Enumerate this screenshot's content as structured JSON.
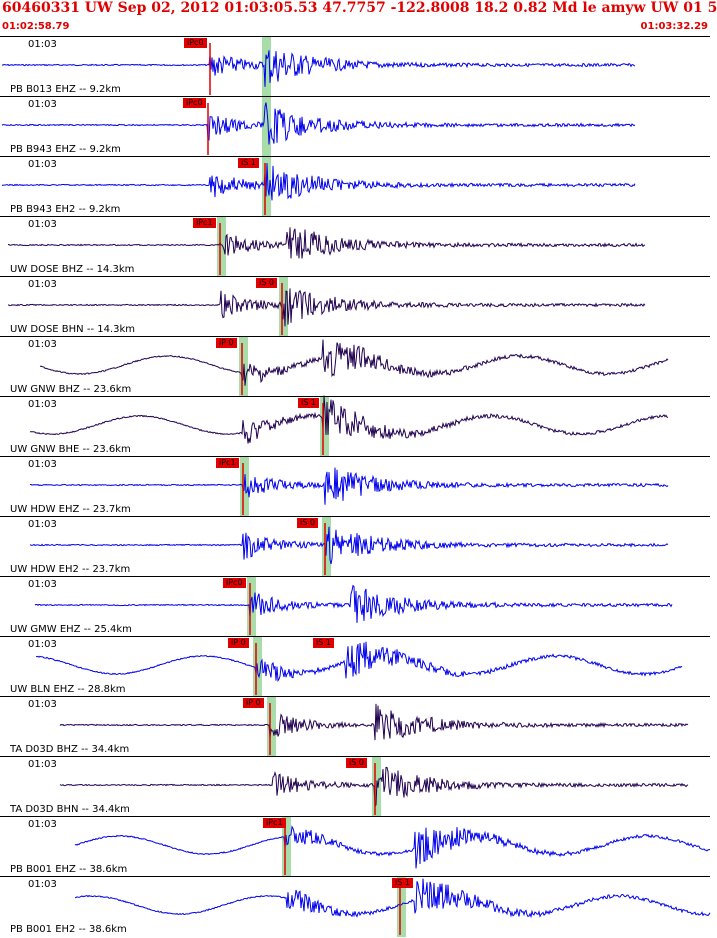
{
  "header": {
    "title": "60460331 UW Sep 02, 2012 01:03:05.53   47.7757 -122.8008 18.2 0.82 Md le amyw UW 01   5",
    "time_start": "01:02:58.79",
    "time_end": "01:03:32.29"
  },
  "colors": {
    "header_text": "#e00000",
    "trace_blue": "#0000ee",
    "trace_dark": "#200050",
    "pick_red": "#e00000",
    "window_green": "#a8dca8"
  },
  "traces": [
    {
      "tick": "01:03",
      "label": "PB B013 EHZ -- 9.2km",
      "phase": "iPc0",
      "color": "blue"
    },
    {
      "tick": "01:03",
      "label": "PB B943 EHZ -- 9.2km",
      "phase": "iPc0",
      "color": "blue"
    },
    {
      "tick": "01:03",
      "label": "PB B943 EH2 -- 9.2km",
      "phase": "iS 1",
      "color": "blue"
    },
    {
      "tick": "01:03",
      "label": "UW DOSE BHZ -- 14.3km",
      "phase": "iPc1",
      "color": "dark"
    },
    {
      "tick": "01:03",
      "label": "UW DOSE BHN -- 14.3km",
      "phase": "iS 0",
      "color": "dark"
    },
    {
      "tick": "01:03",
      "label": "UW GNW BHZ -- 23.6km",
      "phase": "iP 0",
      "color": "dark"
    },
    {
      "tick": "01:03",
      "label": "UW GNW BHE -- 23.6km",
      "phase": "iS 1",
      "color": "dark"
    },
    {
      "tick": "01:03",
      "label": "UW HDW EHZ -- 23.7km",
      "phase": "iPc1",
      "color": "blue"
    },
    {
      "tick": "01:03",
      "label": "UW HDW EH2 -- 23.7km",
      "phase": "iS 0",
      "color": "blue"
    },
    {
      "tick": "01:03",
      "label": "UW GMW EHZ -- 25.4km",
      "phase": "iPc0",
      "color": "blue"
    },
    {
      "tick": "01:03",
      "label": "UW BLN EHZ -- 28.8km",
      "phase": "iP 0",
      "color": "blue",
      "phase2": "iS 1"
    },
    {
      "tick": "01:03",
      "label": "TA D03D BHZ -- 34.4km",
      "phase": "iP 0",
      "color": "dark"
    },
    {
      "tick": "01:03",
      "label": "TA D03D BHN -- 34.4km",
      "phase": "iS 0",
      "color": "dark"
    },
    {
      "tick": "01:03",
      "label": "PB B001 EHZ -- 38.6km",
      "phase": "iPc1",
      "color": "blue"
    },
    {
      "tick": "01:03",
      "label": "PB B001 EH2 -- 38.6km",
      "phase": "iS 1",
      "color": "blue"
    }
  ]
}
